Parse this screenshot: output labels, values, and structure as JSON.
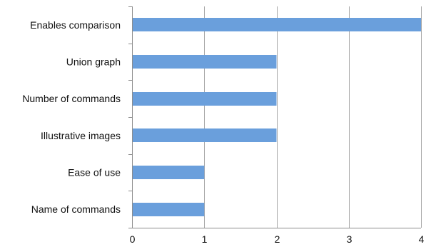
{
  "chart_data": {
    "type": "bar",
    "orientation": "horizontal",
    "categories": [
      "Enables comparison",
      "Union graph",
      "Number of commands",
      "Illustrative images",
      "Ease of use",
      "Name of commands"
    ],
    "values": [
      4,
      2,
      2,
      2,
      1,
      1
    ],
    "xlim": [
      0,
      4
    ],
    "xticks": [
      "0",
      "1",
      "2",
      "3",
      "4"
    ],
    "title": "",
    "xlabel": "",
    "ylabel": "",
    "grid": "vertical",
    "legend": "none",
    "bar_color": "#6a9fdc"
  }
}
